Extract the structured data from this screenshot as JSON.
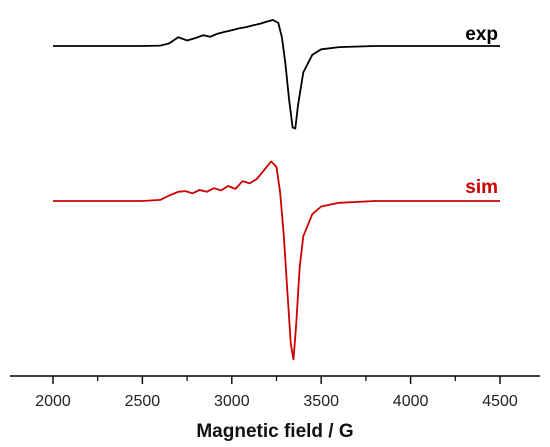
{
  "chart_data": {
    "type": "line",
    "title": "",
    "xlabel": "Magnetic field / G",
    "ylabel": "",
    "xlim": [
      2000,
      4500
    ],
    "x_ticks": [
      2000,
      2500,
      3000,
      3500,
      4000,
      4500
    ],
    "x_tick_labels": [
      "2000",
      "2500",
      "3000",
      "3500",
      "4000",
      "4500"
    ],
    "y_axis_shown": false,
    "grid": false,
    "series": [
      {
        "name": "exp",
        "color": "#000000",
        "x": [
          2000,
          2500,
          2600,
          2650,
          2700,
          2750,
          2800,
          2840,
          2880,
          2920,
          2960,
          3000,
          3040,
          3080,
          3120,
          3160,
          3200,
          3230,
          3260,
          3280,
          3300,
          3320,
          3340,
          3355,
          3370,
          3400,
          3450,
          3500,
          3600,
          3800,
          4000,
          4500
        ],
        "y": [
          0.0,
          0.0,
          0.02,
          0.12,
          0.4,
          0.25,
          0.37,
          0.49,
          0.42,
          0.56,
          0.64,
          0.72,
          0.8,
          0.86,
          0.94,
          1.02,
          1.12,
          1.18,
          1.05,
          0.4,
          -0.8,
          -2.4,
          -3.7,
          -3.75,
          -2.7,
          -1.2,
          -0.4,
          -0.15,
          -0.05,
          0.0,
          0.0,
          0.0
        ]
      },
      {
        "name": "sim",
        "color": "#cc0000",
        "x": [
          2000,
          2500,
          2600,
          2650,
          2700,
          2740,
          2780,
          2820,
          2860,
          2900,
          2940,
          2980,
          3020,
          3060,
          3100,
          3140,
          3180,
          3220,
          3250,
          3270,
          3290,
          3310,
          3330,
          3345,
          3360,
          3380,
          3400,
          3450,
          3500,
          3600,
          3800,
          4000,
          4500
        ],
        "y": [
          0.0,
          0.0,
          0.05,
          0.25,
          0.42,
          0.45,
          0.35,
          0.5,
          0.42,
          0.58,
          0.48,
          0.68,
          0.55,
          0.9,
          0.8,
          1.0,
          1.4,
          1.8,
          1.55,
          0.4,
          -1.5,
          -4.0,
          -6.5,
          -7.2,
          -5.6,
          -3.0,
          -1.6,
          -0.6,
          -0.25,
          -0.08,
          0.0,
          0.0,
          0.0
        ]
      }
    ]
  }
}
